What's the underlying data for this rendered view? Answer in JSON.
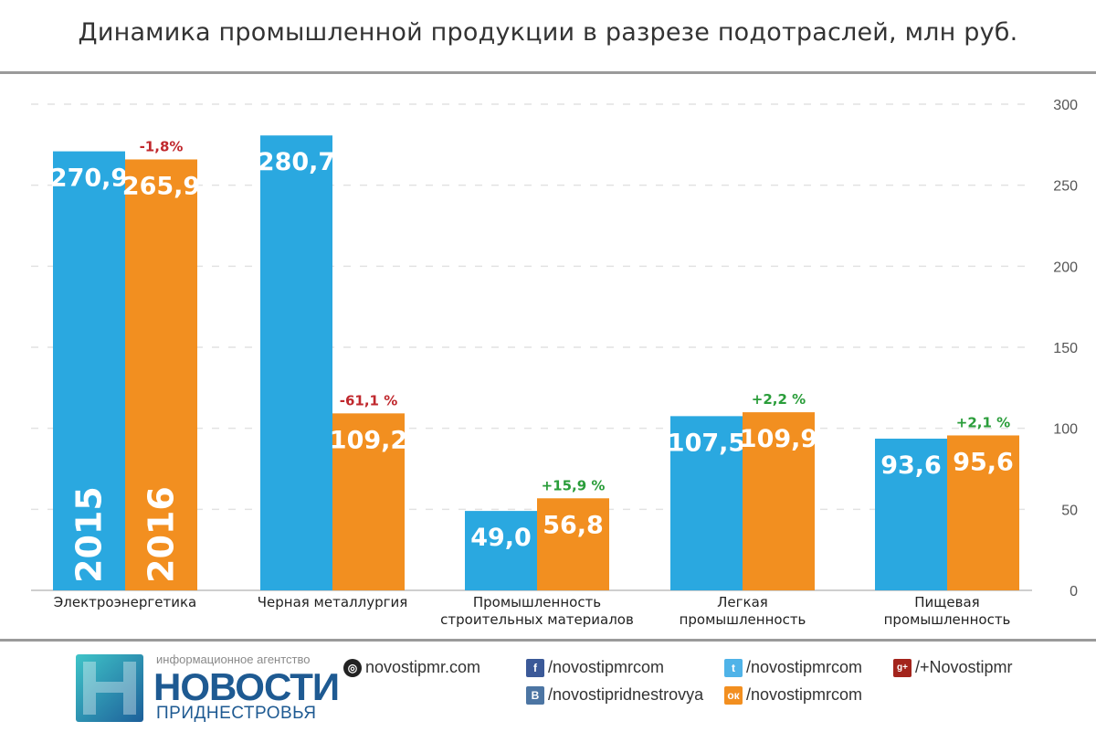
{
  "title": "Динамика промышленной продукции в разрезе подотраслей, млн руб.",
  "colors": {
    "y2015": "#2aa8e0",
    "y2016": "#f28f20",
    "negative": "#c0282d",
    "positive": "#2a9d3a",
    "axis_text": "#555555",
    "grid": "#e2e2e2"
  },
  "chart_data": {
    "type": "bar",
    "categories": [
      "Электроэнергетика",
      "Черная металлургия",
      "Промышленность строительных материалов",
      "Легкая промышленность",
      "Пищевая промышленность"
    ],
    "category_lines": [
      [
        "Электроэнергетика"
      ],
      [
        "Черная металлургия"
      ],
      [
        "Промышленность",
        "строительных материалов"
      ],
      [
        "Легкая",
        "промышленность"
      ],
      [
        "Пищевая",
        "промышленность"
      ]
    ],
    "series": [
      {
        "name": "2015",
        "values": [
          270.9,
          280.7,
          49.0,
          107.5,
          93.6
        ],
        "labels": [
          "270,9",
          "280,7",
          "49,0",
          "107,5",
          "93,6"
        ]
      },
      {
        "name": "2016",
        "values": [
          265.9,
          109.2,
          56.8,
          109.9,
          95.6
        ],
        "labels": [
          "265,9",
          "109,2",
          "56,8",
          "109,9",
          "95,6"
        ]
      }
    ],
    "changes": [
      "-1,8%",
      "-61,1 %",
      "+15,9 %",
      "+2,2 %",
      "+2,1 %"
    ],
    "ylim": [
      0,
      300
    ],
    "yticks": [
      0,
      50,
      100,
      150,
      200,
      250,
      300
    ],
    "legend_in_bars": [
      "2015",
      "2016"
    ],
    "y_axis_side": "right",
    "grid": true
  },
  "footer": {
    "brand_small": "информационное агентство",
    "brand_big": "НОВОСТИ",
    "brand_sub": "ПРИДНЕСТРОВЬЯ",
    "site": "novostipmr.com",
    "facebook": "/novostipmrcom",
    "twitter": "/novostipmrcom",
    "googleplus": "/+Novostipmr",
    "vk": "/novostipridnestrovya",
    "ok": "/novostipmrcom"
  }
}
